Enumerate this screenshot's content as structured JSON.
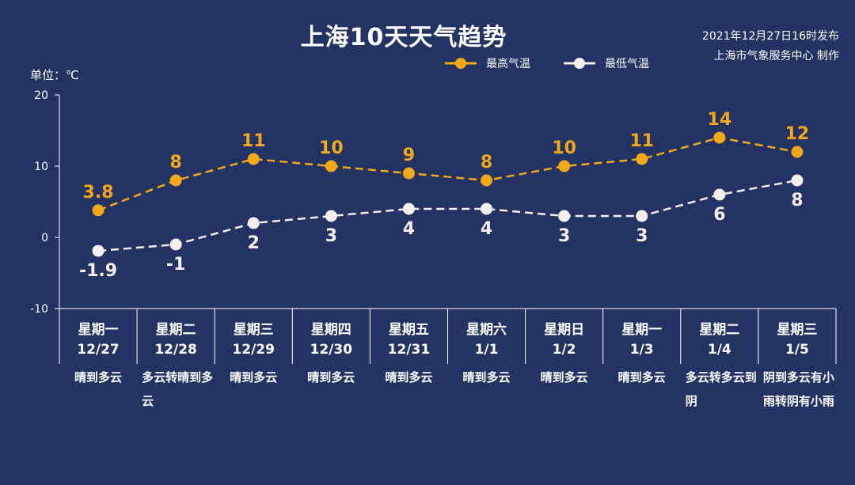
{
  "title": "上海10天天气趋势",
  "issued": {
    "line1": "2021年12月27日16时发布",
    "line2": "上海市气象服务中心 制作"
  },
  "unit_label": "单位：℃",
  "colors": {
    "background": "#233363",
    "high": "#F2A818",
    "low": "#F5F0EE",
    "axis": "#FFFFFF"
  },
  "legend": {
    "high": "最高气温",
    "low": "最低气温"
  },
  "days": [
    {
      "week": "星期一",
      "date": "12/27",
      "weather": "晴到多云"
    },
    {
      "week": "星期二",
      "date": "12/28",
      "weather": "多云转晴到多云"
    },
    {
      "week": "星期三",
      "date": "12/29",
      "weather": "晴到多云"
    },
    {
      "week": "星期四",
      "date": "12/30",
      "weather": "晴到多云"
    },
    {
      "week": "星期五",
      "date": "12/31",
      "weather": "晴到多云"
    },
    {
      "week": "星期六",
      "date": "1/1",
      "weather": "晴到多云"
    },
    {
      "week": "星期日",
      "date": "1/2",
      "weather": "晴到多云"
    },
    {
      "week": "星期一",
      "date": "1/3",
      "weather": "晴到多云"
    },
    {
      "week": "星期二",
      "date": "1/4",
      "weather": "多云转多云到阴"
    },
    {
      "week": "星期三",
      "date": "1/5",
      "weather": "阴到多云有小雨转阴有小雨"
    }
  ],
  "chart_data": {
    "type": "line",
    "title": "上海10天天气趋势",
    "ylabel": "单位：℃",
    "ylim": [
      -10,
      20
    ],
    "yticks": [
      -10,
      0,
      10,
      20
    ],
    "categories": [
      "12/27",
      "12/28",
      "12/29",
      "12/30",
      "12/31",
      "1/1",
      "1/2",
      "1/3",
      "1/4",
      "1/5"
    ],
    "series": [
      {
        "name": "最高气温",
        "values": [
          3.8,
          8,
          11,
          10,
          9,
          8,
          10,
          11,
          14,
          12
        ],
        "labels": [
          "3.8",
          "8",
          "11",
          "10",
          "9",
          "8",
          "10",
          "11",
          "14",
          "12"
        ]
      },
      {
        "name": "最低气温",
        "values": [
          -1.9,
          -1,
          2,
          3,
          4,
          4,
          3,
          3,
          6,
          8
        ],
        "labels": [
          "-1.9",
          "-1",
          "2",
          "3",
          "4",
          "4",
          "3",
          "3",
          "6",
          "8"
        ]
      }
    ],
    "legend_position": "top-right",
    "grid": false
  }
}
